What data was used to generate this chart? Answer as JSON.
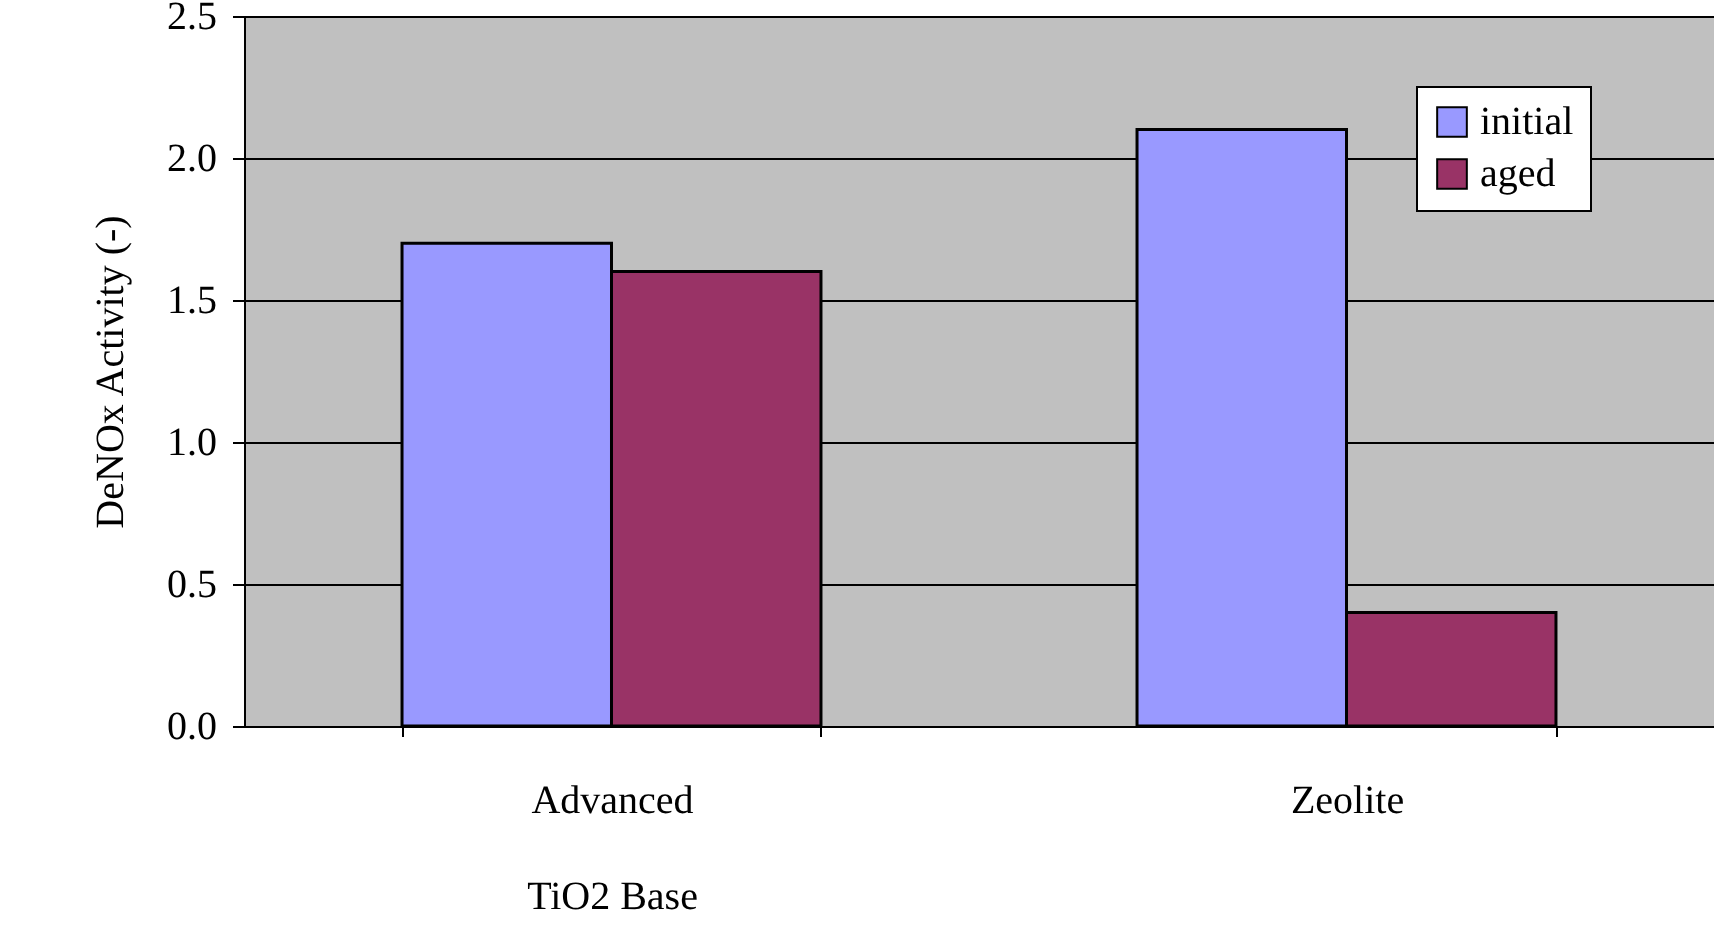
{
  "chart_data": {
    "type": "bar",
    "ylabel": "DeNOx Activity (-)",
    "categories": [
      "Advanced\nTiO2 Base",
      "Zeolite"
    ],
    "series": [
      {
        "name": "initial",
        "color": "#9999ff",
        "values": [
          1.7,
          2.1
        ]
      },
      {
        "name": "aged",
        "color": "#993366",
        "values": [
          1.6,
          0.4
        ]
      }
    ],
    "ylim": [
      0,
      2.5
    ],
    "yticks": [
      {
        "value": 0,
        "label": "0.0"
      },
      {
        "value": 0.5,
        "label": "0.5"
      },
      {
        "value": 1,
        "label": "1.0"
      },
      {
        "value": 1.5,
        "label": "1.5"
      },
      {
        "value": 2,
        "label": "2.0"
      },
      {
        "value": 2.5,
        "label": "2.5"
      }
    ],
    "grid": "y",
    "legend": "top right"
  }
}
